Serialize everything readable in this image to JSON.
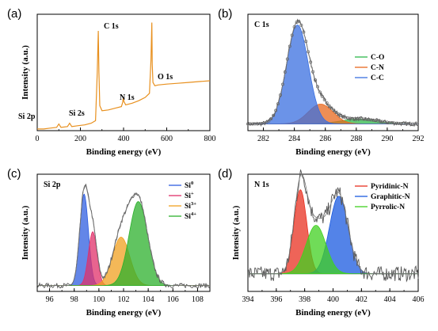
{
  "chart_data": [
    {
      "panel": "(a)",
      "type": "line",
      "title": "",
      "xlabel": "Binding energy (eV)",
      "ylabel": "Intensity (a.u.)",
      "xlim": [
        0,
        800
      ],
      "xticks": [
        "0",
        "200",
        "400",
        "600",
        "800"
      ],
      "line_color": "#e8901e",
      "series": [
        {
          "x": [
            0,
            30,
            60,
            90,
            100,
            110,
            140,
            150,
            160,
            190,
            220,
            250,
            270,
            278,
            283,
            286,
            290,
            300,
            330,
            360,
            390,
            396,
            399,
            402,
            410,
            440,
            470,
            500,
            520,
            527,
            531,
            533,
            536,
            545,
            560,
            600,
            650,
            700,
            750,
            800
          ],
          "y": [
            2,
            2,
            3,
            4,
            8,
            4,
            5,
            9,
            5,
            6,
            7,
            9,
            12,
            70,
            120,
            70,
            30,
            24,
            25,
            27,
            29,
            34,
            40,
            35,
            31,
            33,
            36,
            40,
            45,
            85,
            130,
            80,
            58,
            54,
            55,
            56,
            57,
            58,
            59,
            60
          ]
        }
      ],
      "annotations": [
        "Si 2p",
        "Si 2s",
        "C 1s",
        "N 1s",
        "O 1s"
      ]
    },
    {
      "panel": "(b)",
      "type": "line",
      "title": "C 1s",
      "xlabel": "Binding energy (eV)",
      "ylabel": "",
      "xlim": [
        281,
        292
      ],
      "xticks": [
        "282",
        "284",
        "286",
        "288",
        "290",
        "292"
      ],
      "series": [
        {
          "name": "C-O",
          "color": "#2cb84a",
          "center": 288.2,
          "height": 5,
          "width": 1.2
        },
        {
          "name": "C-N",
          "color": "#e8681e",
          "center": 285.7,
          "height": 20,
          "width": 0.8
        },
        {
          "name": "C-C",
          "color": "#3a6fe0",
          "center": 284.2,
          "height": 100,
          "width": 0.7
        }
      ],
      "baseline": 2,
      "legend": "right"
    },
    {
      "panel": "(c)",
      "type": "line",
      "title": "Si 2p",
      "xlabel": "Binding energy (eV)",
      "ylabel": "Intensity (a.u.)",
      "xlim": [
        95,
        109
      ],
      "xticks": [
        "96",
        "98",
        "100",
        "102",
        "104",
        "106",
        "108"
      ],
      "series": [
        {
          "name": "Si",
          "sup": "0",
          "color": "#2f5ee0",
          "center": 98.8,
          "height": 85,
          "width": 0.35
        },
        {
          "name": "Si",
          "sup": "+",
          "color": "#e0306a",
          "center": 99.5,
          "height": 50,
          "width": 0.35
        },
        {
          "name": "Si",
          "sup": "3+",
          "color": "#f0a020",
          "center": 101.8,
          "height": 45,
          "width": 0.7
        },
        {
          "name": "Si",
          "sup": "4+",
          "color": "#2cb02c",
          "center": 103.2,
          "height": 78,
          "width": 0.75
        }
      ],
      "baseline": 1,
      "legend": "top-right"
    },
    {
      "panel": "(d)",
      "type": "line",
      "title": "N 1s",
      "xlabel": "Binding energy (eV)",
      "ylabel": "Intensity (a.u.)",
      "xlim": [
        394,
        406
      ],
      "xticks": [
        "394",
        "396",
        "398",
        "400",
        "402",
        "404",
        "406"
      ],
      "series": [
        {
          "name": "Pyridinic-N",
          "color": "#e83020",
          "center": 397.7,
          "height": 78,
          "width": 0.45
        },
        {
          "name": "Graphitic-N",
          "color": "#1a5ae0",
          "center": 400.4,
          "height": 72,
          "width": 0.65
        },
        {
          "name": "Pyrrolic-N",
          "color": "#40d020",
          "center": 398.8,
          "height": 45,
          "width": 0.7
        }
      ],
      "baseline": 12,
      "legend": "top-right"
    }
  ]
}
